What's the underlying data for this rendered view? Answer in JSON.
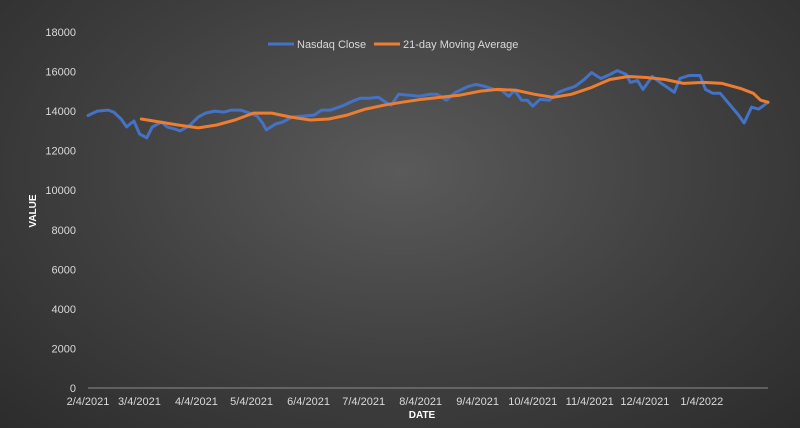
{
  "chart_data": {
    "type": "line",
    "xlabel": "DATE",
    "ylabel": "VALUE",
    "ylim": [
      0,
      18000
    ],
    "y_ticks": [
      "0",
      "2000",
      "4000",
      "6000",
      "8000",
      "10000",
      "12000",
      "14000",
      "16000",
      "18000"
    ],
    "x_tick_labels": [
      "2/4/2021",
      "3/4/2021",
      "4/4/2021",
      "5/4/2021",
      "6/4/2021",
      "7/4/2021",
      "8/4/2021",
      "9/4/2021",
      "10/4/2021",
      "11/4/2021",
      "12/4/2021",
      "1/4/2022"
    ],
    "x_range": [
      "2021-02-04",
      "2022-02-09"
    ],
    "grid": false,
    "legend_position": "top-center",
    "series": [
      {
        "name": "Nasdaq Close",
        "color": "#4472c4",
        "points": [
          [
            "2021-02-04",
            13780
          ],
          [
            "2021-02-09",
            14000
          ],
          [
            "2021-02-15",
            14050
          ],
          [
            "2021-02-18",
            13950
          ],
          [
            "2021-02-22",
            13600
          ],
          [
            "2021-02-25",
            13200
          ],
          [
            "2021-03-01",
            13500
          ],
          [
            "2021-03-04",
            12850
          ],
          [
            "2021-03-08",
            12650
          ],
          [
            "2021-03-11",
            13200
          ],
          [
            "2021-03-16",
            13450
          ],
          [
            "2021-03-19",
            13200
          ],
          [
            "2021-03-23",
            13100
          ],
          [
            "2021-03-26",
            13000
          ],
          [
            "2021-03-31",
            13250
          ],
          [
            "2021-04-05",
            13700
          ],
          [
            "2021-04-09",
            13900
          ],
          [
            "2021-04-14",
            14000
          ],
          [
            "2021-04-19",
            13950
          ],
          [
            "2021-04-23",
            14050
          ],
          [
            "2021-04-28",
            14050
          ],
          [
            "2021-05-03",
            13900
          ],
          [
            "2021-05-07",
            13750
          ],
          [
            "2021-05-10",
            13400
          ],
          [
            "2021-05-12",
            13050
          ],
          [
            "2021-05-17",
            13350
          ],
          [
            "2021-05-21",
            13450
          ],
          [
            "2021-05-26",
            13700
          ],
          [
            "2021-06-01",
            13750
          ],
          [
            "2021-06-07",
            13800
          ],
          [
            "2021-06-11",
            14050
          ],
          [
            "2021-06-16",
            14050
          ],
          [
            "2021-06-22",
            14250
          ],
          [
            "2021-06-28",
            14500
          ],
          [
            "2021-07-02",
            14650
          ],
          [
            "2021-07-07",
            14650
          ],
          [
            "2021-07-12",
            14700
          ],
          [
            "2021-07-16",
            14450
          ],
          [
            "2021-07-19",
            14300
          ],
          [
            "2021-07-23",
            14850
          ],
          [
            "2021-07-29",
            14800
          ],
          [
            "2021-08-03",
            14750
          ],
          [
            "2021-08-09",
            14850
          ],
          [
            "2021-08-13",
            14850
          ],
          [
            "2021-08-18",
            14550
          ],
          [
            "2021-08-23",
            14950
          ],
          [
            "2021-08-30",
            15250
          ],
          [
            "2021-09-03",
            15350
          ],
          [
            "2021-09-08",
            15250
          ],
          [
            "2021-09-13",
            15100
          ],
          [
            "2021-09-17",
            15050
          ],
          [
            "2021-09-21",
            14750
          ],
          [
            "2021-09-24",
            15050
          ],
          [
            "2021-09-28",
            14550
          ],
          [
            "2021-10-01",
            14550
          ],
          [
            "2021-10-04",
            14250
          ],
          [
            "2021-10-08",
            14600
          ],
          [
            "2021-10-13",
            14550
          ],
          [
            "2021-10-18",
            14950
          ],
          [
            "2021-10-22",
            15100
          ],
          [
            "2021-10-27",
            15250
          ],
          [
            "2021-11-01",
            15600
          ],
          [
            "2021-11-05",
            15950
          ],
          [
            "2021-11-10",
            15650
          ],
          [
            "2021-11-15",
            15850
          ],
          [
            "2021-11-19",
            16050
          ],
          [
            "2021-11-24",
            15850
          ],
          [
            "2021-11-26",
            15450
          ],
          [
            "2021-11-30",
            15550
          ],
          [
            "2021-12-03",
            15100
          ],
          [
            "2021-12-08",
            15750
          ],
          [
            "2021-12-13",
            15400
          ],
          [
            "2021-12-17",
            15150
          ],
          [
            "2021-12-20",
            14950
          ],
          [
            "2021-12-23",
            15650
          ],
          [
            "2021-12-28",
            15800
          ],
          [
            "2022-01-03",
            15800
          ],
          [
            "2022-01-06",
            15100
          ],
          [
            "2022-01-10",
            14900
          ],
          [
            "2022-01-14",
            14900
          ],
          [
            "2022-01-19",
            14350
          ],
          [
            "2022-01-24",
            13800
          ],
          [
            "2022-01-27",
            13400
          ],
          [
            "2022-01-31",
            14200
          ],
          [
            "2022-02-04",
            14100
          ],
          [
            "2022-02-09",
            14450
          ]
        ]
      },
      {
        "name": "21-day Moving Average",
        "color": "#ed7d31",
        "points": [
          [
            "2021-03-05",
            13600
          ],
          [
            "2021-03-15",
            13450
          ],
          [
            "2021-03-25",
            13300
          ],
          [
            "2021-04-05",
            13150
          ],
          [
            "2021-04-15",
            13300
          ],
          [
            "2021-04-25",
            13550
          ],
          [
            "2021-05-05",
            13900
          ],
          [
            "2021-05-15",
            13900
          ],
          [
            "2021-05-25",
            13700
          ],
          [
            "2021-06-05",
            13550
          ],
          [
            "2021-06-15",
            13600
          ],
          [
            "2021-06-25",
            13800
          ],
          [
            "2021-07-05",
            14100
          ],
          [
            "2021-07-15",
            14300
          ],
          [
            "2021-07-25",
            14450
          ],
          [
            "2021-08-05",
            14600
          ],
          [
            "2021-08-15",
            14700
          ],
          [
            "2021-08-25",
            14800
          ],
          [
            "2021-09-05",
            15000
          ],
          [
            "2021-09-15",
            15100
          ],
          [
            "2021-09-25",
            15050
          ],
          [
            "2021-10-05",
            14850
          ],
          [
            "2021-10-15",
            14700
          ],
          [
            "2021-10-25",
            14850
          ],
          [
            "2021-11-05",
            15200
          ],
          [
            "2021-11-15",
            15600
          ],
          [
            "2021-11-25",
            15750
          ],
          [
            "2021-12-05",
            15700
          ],
          [
            "2021-12-15",
            15600
          ],
          [
            "2021-12-25",
            15400
          ],
          [
            "2022-01-05",
            15450
          ],
          [
            "2022-01-15",
            15400
          ],
          [
            "2022-01-25",
            15150
          ],
          [
            "2022-02-01",
            14900
          ],
          [
            "2022-02-05",
            14550
          ],
          [
            "2022-02-09",
            14450
          ]
        ]
      }
    ]
  }
}
